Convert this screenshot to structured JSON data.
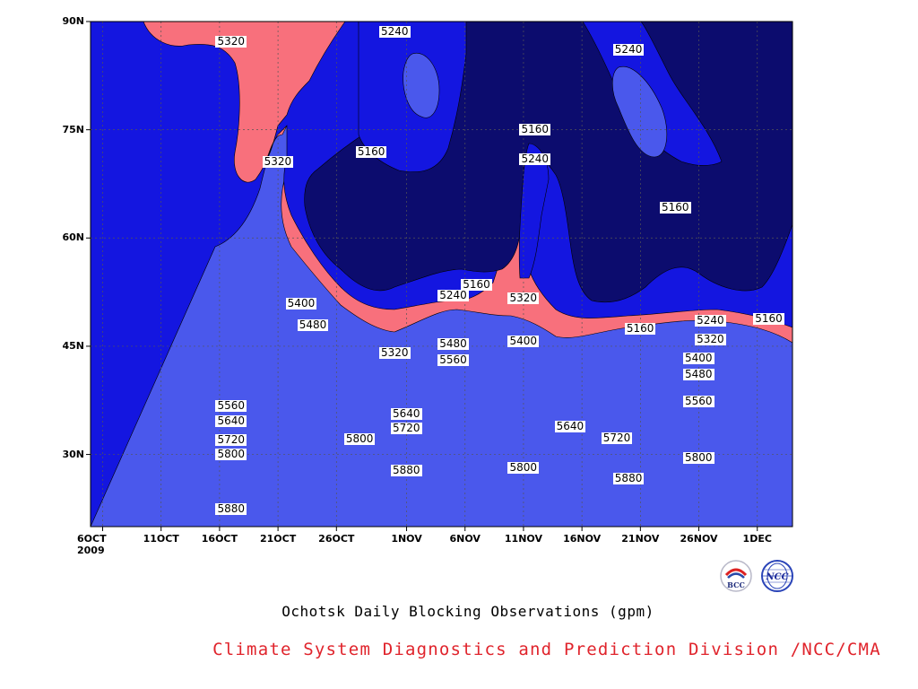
{
  "chart_data": {
    "type": "contour",
    "title": "Ochotsk Daily Blocking Observations (gpm)",
    "credit": "Climate System Diagnostics and Prediction Division /NCC/CMA",
    "logos": [
      "BCC",
      "NCC"
    ],
    "y_ticks": [
      "90N",
      "75N",
      "60N",
      "45N",
      "30N"
    ],
    "x_ticks": [
      "6OCT",
      "11OCT",
      "16OCT",
      "21OCT",
      "26OCT",
      "1NOV",
      "6NOV",
      "11NOV",
      "16NOV",
      "21NOV",
      "26NOV",
      "1DEC"
    ],
    "x_year": "2009",
    "ylim": [
      "20N",
      "90N"
    ],
    "xlim": [
      "6OCT2009",
      "5DEC2009"
    ],
    "grid": "dotted",
    "levels": [
      5160,
      5240,
      5320,
      5400,
      5480,
      5560,
      5640,
      5720,
      5800,
      5880
    ],
    "fill_colors": [
      "#0c0c6e",
      "#1416e0",
      "#4a58ec",
      "#5b96e6",
      "#64c4f8",
      "#f8f87c",
      "#fce0a0",
      "#fca468",
      "#fc7444",
      "#f8707c",
      "#f03648"
    ],
    "contour_labels": [
      {
        "value": "5320",
        "date": "17OCT2009",
        "lat": 87.2
      },
      {
        "value": "5240",
        "date": "31OCT2009",
        "lat": 88.5
      },
      {
        "value": "5240",
        "date": "20NOV2009",
        "lat": 86.0
      },
      {
        "value": "5160",
        "date": "12NOV2009",
        "lat": 75.0
      },
      {
        "value": "5160",
        "date": "29OCT2009",
        "lat": 71.8
      },
      {
        "value": "5240",
        "date": "12NOV2009",
        "lat": 70.8
      },
      {
        "value": "5320",
        "date": "21OCT2009",
        "lat": 70.5
      },
      {
        "value": "5160",
        "date": "24NOV2009",
        "lat": 64.2
      },
      {
        "value": "5160",
        "date": "7NOV2009",
        "lat": 53.5
      },
      {
        "value": "5240",
        "date": "5NOV2009",
        "lat": 52.0
      },
      {
        "value": "5320",
        "date": "11NOV2009",
        "lat": 51.6
      },
      {
        "value": "5400",
        "date": "23OCT2009",
        "lat": 50.8
      },
      {
        "value": "5160",
        "date": "21NOV2009",
        "lat": 47.3
      },
      {
        "value": "5240",
        "date": "27NOV2009",
        "lat": 48.5
      },
      {
        "value": "5160",
        "date": "2DEC2009",
        "lat": 48.7
      },
      {
        "value": "5480",
        "date": "24OCT2009",
        "lat": 47.8
      },
      {
        "value": "5320",
        "date": "27NOV2009",
        "lat": 45.8
      },
      {
        "value": "5480",
        "date": "5NOV2009",
        "lat": 45.2
      },
      {
        "value": "5400",
        "date": "11NOV2009",
        "lat": 45.6
      },
      {
        "value": "5320",
        "date": "31OCT2009",
        "lat": 44.0
      },
      {
        "value": "5560",
        "date": "5NOV2009",
        "lat": 43.0
      },
      {
        "value": "5400",
        "date": "26NOV2009",
        "lat": 43.2
      },
      {
        "value": "5480",
        "date": "26NOV2009",
        "lat": 41.0
      },
      {
        "value": "5560",
        "date": "17OCT2009",
        "lat": 36.7
      },
      {
        "value": "5560",
        "date": "26NOV2009",
        "lat": 37.3
      },
      {
        "value": "5640",
        "date": "1NOV2009",
        "lat": 35.6
      },
      {
        "value": "5640",
        "date": "17OCT2009",
        "lat": 34.6
      },
      {
        "value": "5720",
        "date": "1NOV2009",
        "lat": 33.6
      },
      {
        "value": "5640",
        "date": "15NOV2009",
        "lat": 33.8
      },
      {
        "value": "5720",
        "date": "17OCT2009",
        "lat": 31.9
      },
      {
        "value": "5800",
        "date": "28OCT2009",
        "lat": 32.1
      },
      {
        "value": "5720",
        "date": "19NOV2009",
        "lat": 32.2
      },
      {
        "value": "5800",
        "date": "17OCT2009",
        "lat": 29.9
      },
      {
        "value": "5800",
        "date": "11NOV2009",
        "lat": 28.1
      },
      {
        "value": "5800",
        "date": "26NOV2009",
        "lat": 29.5
      },
      {
        "value": "5880",
        "date": "1NOV2009",
        "lat": 27.7
      },
      {
        "value": "5880",
        "date": "20NOV2009",
        "lat": 26.6
      },
      {
        "value": "5880",
        "date": "17OCT2009",
        "lat": 22.4
      }
    ]
  }
}
